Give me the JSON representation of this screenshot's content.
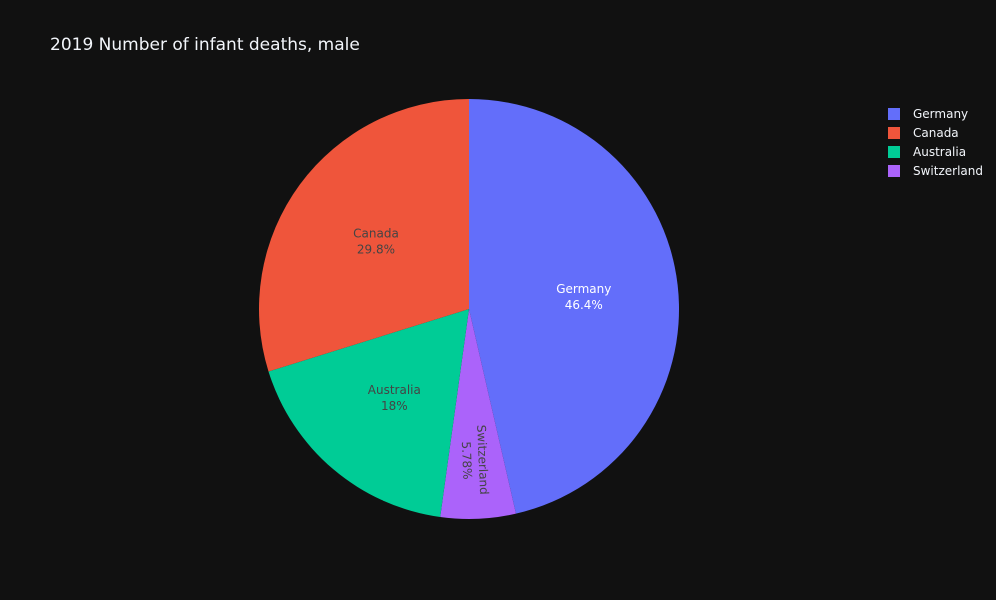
{
  "chart_data": {
    "type": "pie",
    "title": "2019 Number of infant deaths, male",
    "slices": [
      {
        "label": "Germany",
        "percent_label": "46.4%",
        "value": 46.4,
        "color": "#636efa",
        "text_color": "#ffffff"
      },
      {
        "label": "Switzerland",
        "percent_label": "5.78%",
        "value": 5.78,
        "color": "#ab63fa",
        "text_color": "#444444"
      },
      {
        "label": "Australia",
        "percent_label": "18%",
        "value": 18.0,
        "color": "#00cc96",
        "text_color": "#444444"
      },
      {
        "label": "Canada",
        "percent_label": "29.8%",
        "value": 29.8,
        "color": "#ef553b",
        "text_color": "#444444"
      }
    ],
    "legend": {
      "placement": "top-right",
      "entries": [
        "Germany",
        "Canada",
        "Australia",
        "Switzerland"
      ]
    },
    "background": "#111111"
  }
}
